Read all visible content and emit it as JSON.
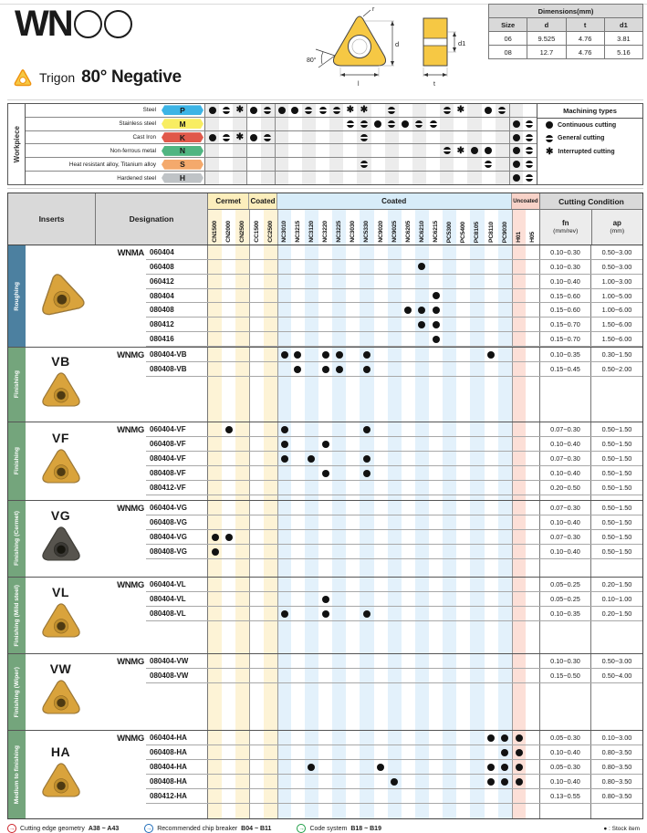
{
  "logo": {
    "text": "WN"
  },
  "heading": {
    "type_label": "Trigon",
    "title": "80° Negative"
  },
  "diagram": {
    "corner_radius_label": "r",
    "ic_diameter_label": "d",
    "angle_label": "80°",
    "length_label": "l",
    "thickness_label": "t",
    "hole_diameter_label": "d1"
  },
  "dimensions_table": {
    "title": "Dimensions(mm)",
    "columns": [
      "Size",
      "d",
      "t",
      "d1"
    ],
    "rows": [
      [
        "06",
        "9.525",
        "4.76",
        "3.81"
      ],
      [
        "08",
        "12.7",
        "4.76",
        "5.16"
      ]
    ]
  },
  "grades": {
    "groups": [
      {
        "key": "cermet",
        "label": "Cermet",
        "tint_offset": 0,
        "cols": [
          "CN1500",
          "CN2000",
          "CN2500"
        ]
      },
      {
        "key": "coated_cc",
        "label": "Coated",
        "tint_offset": 1,
        "cols": [
          "CC1500",
          "CC2500"
        ]
      },
      {
        "key": "coated",
        "label": "Coated",
        "tint_offset": 0,
        "cols": [
          "NC3010",
          "NC3215",
          "NC3120",
          "NC3220",
          "NC3225",
          "NC3030",
          "NC5330",
          "NC9020",
          "NC9025",
          "NC6205",
          "NC6210",
          "NC6215",
          "PC5300",
          "PC5400",
          "PC8105",
          "PC8110",
          "PC9030"
        ]
      },
      {
        "key": "uncoated",
        "label": "Uncoated",
        "tint_offset": 0,
        "cols": [
          "H01",
          "H05"
        ]
      }
    ]
  },
  "workpiece": {
    "side_label": "Workpiece",
    "rows": [
      {
        "material": "Steel",
        "letter": "P",
        "color": "#3cb4e5",
        "marks": {
          "CN1500": "C",
          "CN2000": "G",
          "CN2500": "I",
          "CC1500": "C",
          "CC2500": "G",
          "NC3010": "C",
          "NC3215": "C",
          "NC3120": "G",
          "NC3220": "G",
          "NC3225": "G",
          "NC3030": "I",
          "NC5330": "I",
          "NC9025": "G",
          "PC5300": "G",
          "PC5400": "I",
          "PC8110": "C",
          "PC9030": "G"
        }
      },
      {
        "material": "Stainless steel",
        "letter": "M",
        "color": "#f8ed62",
        "marks": {
          "NC3030": "G",
          "NC5330": "G",
          "NC9020": "C",
          "NC9025": "G",
          "NC6205": "C",
          "NC6210": "G",
          "NC6215": "G",
          "H01": "C",
          "H05": "G"
        }
      },
      {
        "material": "Cast Iron",
        "letter": "K",
        "color": "#e0584a",
        "marks": {
          "CN1500": "C",
          "CN2000": "G",
          "CN2500": "I",
          "CC1500": "C",
          "CC2500": "G",
          "NC5330": "G",
          "H01": "C",
          "H05": "G"
        }
      },
      {
        "material": "Non-ferrous metal",
        "letter": "N",
        "color": "#50b581",
        "marks": {
          "PC5300": "G",
          "PC5400": "I",
          "PC8105": "C",
          "PC8110": "C",
          "H01": "C",
          "H05": "G"
        }
      },
      {
        "material": "Heat resistant alloy, Titanium alloy",
        "letter": "S",
        "color": "#f4a96c",
        "marks": {
          "NC5330": "G",
          "PC8110": "G",
          "H01": "C",
          "H05": "G"
        }
      },
      {
        "material": "Hardened steel",
        "letter": "H",
        "color": "#bfc3c6",
        "marks": {
          "H01": "C",
          "H05": "G"
        }
      }
    ]
  },
  "machining_types": {
    "title": "Machining types",
    "items": [
      {
        "symbol": "C",
        "label": "Continuous cutting"
      },
      {
        "symbol": "G",
        "label": "General cutting"
      },
      {
        "symbol": "I",
        "label": "Interrupted cutting"
      }
    ]
  },
  "main_table": {
    "inserts_header": "Inserts",
    "designation_header": "Designation",
    "cutting_condition_header": "Cutting Condition",
    "fn_header": "fn",
    "fn_unit": "(mm/rev)",
    "ap_header": "ap",
    "ap_unit": "(mm)",
    "groups": [
      {
        "side_label": "Roughing",
        "side_color": "blue",
        "code": "",
        "prefix": "WNMA",
        "insert_style": "gold",
        "rows": [
          {
            "size": "060404",
            "dots": [],
            "fn": "0.10~0.30",
            "ap": "0.50~3.00"
          },
          {
            "size": "060408",
            "dots": [
              "NC6210"
            ],
            "fn": "0.10~0.30",
            "ap": "0.50~3.00"
          },
          {
            "size": "060412",
            "dots": [],
            "fn": "0.10~0.40",
            "ap": "1.00~3.00"
          },
          {
            "size": "080404",
            "dots": [
              "NC6215"
            ],
            "fn": "0.15~0.60",
            "ap": "1.00~5.00"
          },
          {
            "size": "080408",
            "dots": [
              "NC6205",
              "NC6210",
              "NC6215"
            ],
            "fn": "0.15~0.60",
            "ap": "1.00~6.00"
          },
          {
            "size": "080412",
            "dots": [
              "NC6210",
              "NC6215"
            ],
            "fn": "0.15~0.70",
            "ap": "1.50~6.00"
          },
          {
            "size": "080416",
            "dots": [
              "NC6215"
            ],
            "fn": "0.15~0.70",
            "ap": "1.50~6.00"
          }
        ]
      },
      {
        "side_label": "Finishing",
        "side_color": "green",
        "code": "VB",
        "prefix": "WNMG",
        "insert_style": "gold",
        "rows": [
          {
            "size": "080404-VB",
            "dots": [
              "NC3010",
              "NC3215",
              "NC3220",
              "NC3225",
              "NC5330",
              "PC8110"
            ],
            "fn": "0.10~0.35",
            "ap": "0.30~1.50"
          },
          {
            "size": "080408-VB",
            "dots": [
              "NC3215",
              "NC3220",
              "NC3225",
              "NC5330"
            ],
            "fn": "0.15~0.45",
            "ap": "0.50~2.00"
          }
        ]
      },
      {
        "side_label": "Finishing",
        "side_color": "green",
        "code": "VF",
        "prefix": "WNMG",
        "insert_style": "gold",
        "rows": [
          {
            "size": "060404-VF",
            "dots": [
              "CN2000",
              "NC3010",
              "NC5330"
            ],
            "fn": "0.07~0.30",
            "ap": "0.50~1.50"
          },
          {
            "size": "060408-VF",
            "dots": [
              "NC3010",
              "NC3220"
            ],
            "fn": "0.10~0.40",
            "ap": "0.50~1.50"
          },
          {
            "size": "080404-VF",
            "dots": [
              "NC3010",
              "NC3120",
              "NC5330"
            ],
            "fn": "0.07~0.30",
            "ap": "0.50~1.50"
          },
          {
            "size": "080408-VF",
            "dots": [
              "NC3220",
              "NC5330"
            ],
            "fn": "0.10~0.40",
            "ap": "0.50~1.50"
          },
          {
            "size": "080412-VF",
            "dots": [],
            "fn": "0.20~0.50",
            "ap": "0.50~1.50"
          }
        ]
      },
      {
        "side_label": "Finishing (Cermet)",
        "side_color": "green",
        "code": "VG",
        "prefix": "WNMG",
        "insert_style": "dark",
        "rows": [
          {
            "size": "060404-VG",
            "dots": [],
            "fn": "0.07~0.30",
            "ap": "0.50~1.50"
          },
          {
            "size": "060408-VG",
            "dots": [],
            "fn": "0.10~0.40",
            "ap": "0.50~1.50"
          },
          {
            "size": "080404-VG",
            "dots": [
              "CN1500",
              "CN2000"
            ],
            "fn": "0.07~0.30",
            "ap": "0.50~1.50"
          },
          {
            "size": "080408-VG",
            "dots": [
              "CN1500"
            ],
            "fn": "0.10~0.40",
            "ap": "0.50~1.50"
          }
        ]
      },
      {
        "side_label": "Finishing (Mild steel)",
        "side_color": "green",
        "code": "VL",
        "prefix": "WNMG",
        "insert_style": "gold",
        "rows": [
          {
            "size": "060404-VL",
            "dots": [],
            "fn": "0.05~0.25",
            "ap": "0.20~1.50"
          },
          {
            "size": "080404-VL",
            "dots": [
              "NC3220"
            ],
            "fn": "0.05~0.25",
            "ap": "0.10~1.00"
          },
          {
            "size": "080408-VL",
            "dots": [
              "NC3010",
              "NC3220",
              "NC5330"
            ],
            "fn": "0.10~0.35",
            "ap": "0.20~1.50"
          }
        ]
      },
      {
        "side_label": "Finishing (Wiper)",
        "side_color": "green",
        "code": "VW",
        "prefix": "WNMG",
        "insert_style": "gold",
        "rows": [
          {
            "size": "080404-VW",
            "dots": [],
            "fn": "0.10~0.30",
            "ap": "0.50~3.00"
          },
          {
            "size": "080408-VW",
            "dots": [],
            "fn": "0.15~0.50",
            "ap": "0.50~4.00"
          }
        ]
      },
      {
        "side_label": "Medium to finishing",
        "side_color": "green",
        "code": "HA",
        "prefix": "WNMG",
        "insert_style": "gold",
        "rows": [
          {
            "size": "060404-HA",
            "dots": [
              "PC8110",
              "PC9030",
              "H01"
            ],
            "fn": "0.05~0.30",
            "ap": "0.10~3.00"
          },
          {
            "size": "060408-HA",
            "dots": [
              "PC9030",
              "H01"
            ],
            "fn": "0.10~0.40",
            "ap": "0.80~3.50"
          },
          {
            "size": "080404-HA",
            "dots": [
              "NC3120",
              "NC9020",
              "PC8110",
              "PC9030",
              "H01"
            ],
            "fn": "0.05~0.30",
            "ap": "0.80~3.50"
          },
          {
            "size": "080408-HA",
            "dots": [
              "NC9025",
              "PC8110",
              "PC9030",
              "H01"
            ],
            "fn": "0.10~0.40",
            "ap": "0.80~3.50"
          },
          {
            "size": "080412-HA",
            "dots": [],
            "fn": "0.13~0.55",
            "ap": "0.80~3.50"
          }
        ]
      }
    ]
  },
  "footer": {
    "links": [
      {
        "label": "Cutting edge geometry",
        "range": "A38 ~ A43",
        "color": "#cc2229"
      },
      {
        "label": "Recommended chip breaker",
        "range": "B04 ~ B11",
        "color": "#1d6bb8"
      },
      {
        "label": "Code system",
        "range": "B18 ~ B19",
        "color": "#1e9e46"
      }
    ],
    "stock_note": "● : Stock item"
  }
}
